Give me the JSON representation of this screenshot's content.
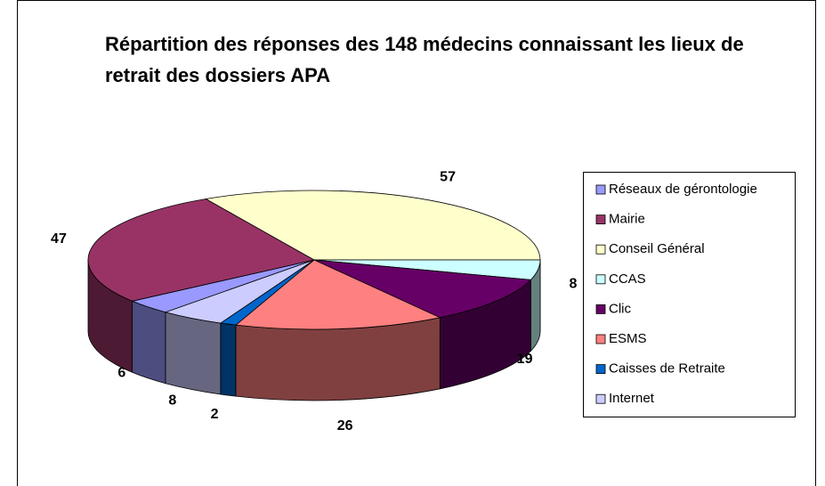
{
  "chart_data": {
    "type": "pie3d",
    "title": "Répartition des réponses des 148 médecins connaissant les lieux de retrait des dossiers APA",
    "categories": [
      "Réseaux de gérontologie",
      "Mairie",
      "Conseil Général",
      "CCAS",
      "Clic",
      "ESMS",
      "Caisses de Retraite",
      "Internet"
    ],
    "values": [
      6,
      47,
      57,
      8,
      19,
      26,
      2,
      8
    ],
    "colors": [
      "#9999ff",
      "#993366",
      "#ffffcc",
      "#ccffff",
      "#660066",
      "#ff8080",
      "#0066cc",
      "#ccccff"
    ],
    "legend": "right"
  }
}
